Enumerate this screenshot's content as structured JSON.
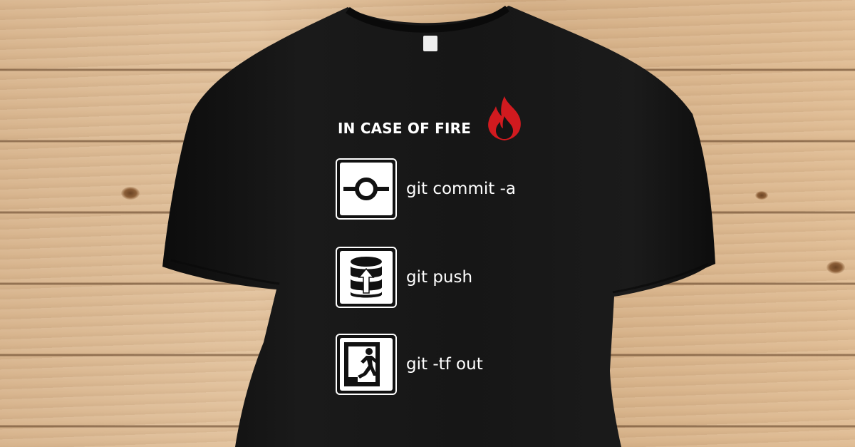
{
  "shirt": {
    "headline": "IN CASE OF FIRE",
    "headline_icon": "flame-icon",
    "steps": [
      {
        "icon": "commit-icon",
        "command": "git commit -a"
      },
      {
        "icon": "database-push-icon",
        "command": "git push"
      },
      {
        "icon": "emergency-exit-icon",
        "command": "git -tf out"
      }
    ]
  },
  "colors": {
    "shirt": "#141414",
    "print_text": "#ffffff",
    "flame": "#d11a1f",
    "background_wood": "#dcb890"
  }
}
